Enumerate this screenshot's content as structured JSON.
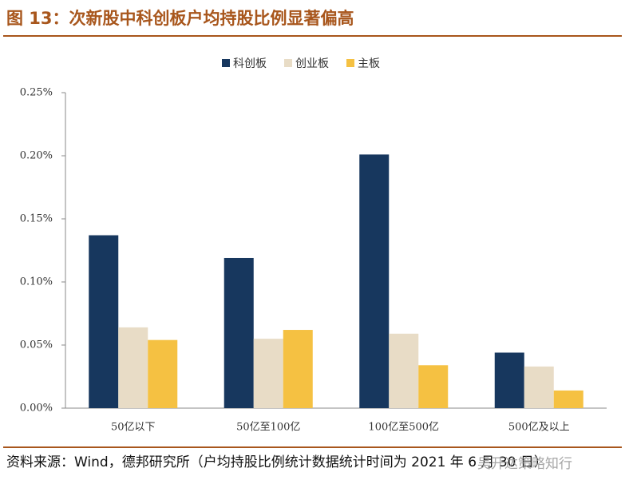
{
  "chart_data": {
    "type": "bar",
    "title": "图 13：次新股中科创板户均持股比例显著偏高",
    "categories": [
      "50亿以下",
      "50亿至100亿",
      "100亿至500亿",
      "500亿及以上"
    ],
    "series": [
      {
        "name": "科创板",
        "color": "#17375e",
        "values": [
          0.137,
          0.119,
          0.201,
          0.044
        ]
      },
      {
        "name": "创业板",
        "color": "#e8dcc6",
        "values": [
          0.064,
          0.055,
          0.059,
          0.033
        ]
      },
      {
        "name": "主板",
        "color": "#f5c142",
        "values": [
          0.054,
          0.062,
          0.034,
          0.014
        ]
      }
    ],
    "ylim": [
      0,
      0.25
    ],
    "yticks": [
      {
        "value": 0,
        "label": "0.00%"
      },
      {
        "value": 0.05,
        "label": "0.05%"
      },
      {
        "value": 0.1,
        "label": "0.10%"
      },
      {
        "value": 0.15,
        "label": "0.15%"
      },
      {
        "value": 0.2,
        "label": "0.20%"
      },
      {
        "value": 0.25,
        "label": "0.25%"
      }
    ],
    "legend_position": "top",
    "source": "资料来源：Wind，德邦研究所（户均持股比例统计数据统计时间为 2021 年 6 月 30 日）",
    "watermark": "吴开达策略知行"
  }
}
